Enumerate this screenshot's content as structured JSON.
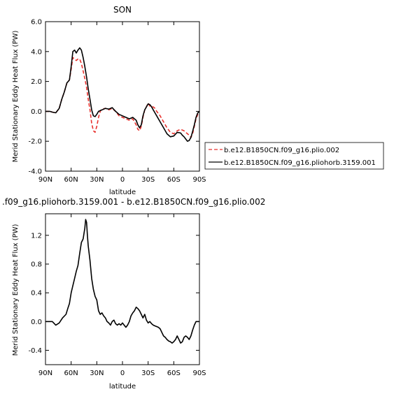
{
  "chart_data": [
    {
      "type": "line",
      "title": "SON",
      "xlabel": "latitude",
      "ylabel": "Merid Stationary Eddy Heat Flux (PW)",
      "xlim": [
        90,
        -90
      ],
      "ylim": [
        -4.0,
        6.0
      ],
      "xticks": [
        90,
        60,
        30,
        0,
        -30,
        -60,
        -90
      ],
      "xtick_labels": [
        "90N",
        "60N",
        "30N",
        "0",
        "30S",
        "60S",
        "90S"
      ],
      "yticks": [
        -4.0,
        -2.0,
        0.0,
        2.0,
        4.0,
        6.0
      ],
      "ytick_labels": [
        "-4.0",
        "-2.0",
        "0.0",
        "2.0",
        "4.0",
        "6.0"
      ],
      "grid": false,
      "legend_position": "outside-right",
      "series": [
        {
          "name": "b.e12.B1850CN.f09_g16.plio.002",
          "color": "#e8322e",
          "dash": "dashed",
          "x": [
            90,
            85,
            82,
            78,
            74,
            71,
            68,
            65,
            62,
            60,
            58,
            56,
            54,
            52,
            50,
            48,
            46,
            44,
            42,
            40,
            38,
            36,
            34,
            32,
            30,
            28,
            26,
            24,
            20,
            16,
            12,
            8,
            4,
            0,
            -4,
            -8,
            -12,
            -16,
            -18,
            -20,
            -22,
            -24,
            -26,
            -28,
            -30,
            -32,
            -34,
            -36,
            -38,
            -40,
            -44,
            -48,
            -52,
            -56,
            -60,
            -64,
            -68,
            -70,
            -72,
            -74,
            -76,
            -78,
            -80,
            -82,
            -84,
            -86,
            -88,
            -90
          ],
          "y": [
            0.0,
            0.0,
            -0.05,
            -0.1,
            0.2,
            0.8,
            1.3,
            1.9,
            2.1,
            2.8,
            3.6,
            3.5,
            3.4,
            3.5,
            3.5,
            3.2,
            2.7,
            2.2,
            1.6,
            0.8,
            0.1,
            -0.8,
            -1.3,
            -1.4,
            -1.0,
            -0.4,
            0.0,
            0.15,
            0.2,
            0.1,
            0.2,
            0.0,
            -0.3,
            -0.4,
            -0.5,
            -0.6,
            -0.5,
            -0.9,
            -1.2,
            -1.3,
            -1.0,
            -0.4,
            0.1,
            0.3,
            0.55,
            0.35,
            0.3,
            0.3,
            0.2,
            0.0,
            -0.3,
            -0.7,
            -1.1,
            -1.4,
            -1.5,
            -1.3,
            -1.2,
            -1.25,
            -1.3,
            -1.4,
            -1.5,
            -1.6,
            -1.75,
            -1.5,
            -1.0,
            -0.5,
            -0.2,
            0.0
          ]
        },
        {
          "name": "b.e12.B1850CN.f09_g16.pliohorb.3159.001",
          "color": "#000000",
          "dash": "solid",
          "x": [
            90,
            85,
            82,
            78,
            74,
            71,
            68,
            65,
            62,
            60,
            58,
            56,
            54,
            52,
            50,
            48,
            46,
            44,
            42,
            40,
            38,
            36,
            34,
            32,
            30,
            28,
            26,
            24,
            20,
            16,
            12,
            8,
            4,
            0,
            -4,
            -8,
            -12,
            -16,
            -18,
            -20,
            -22,
            -24,
            -26,
            -28,
            -30,
            -32,
            -34,
            -36,
            -38,
            -40,
            -44,
            -48,
            -52,
            -56,
            -60,
            -64,
            -68,
            -70,
            -72,
            -74,
            -76,
            -78,
            -80,
            -82,
            -84,
            -86,
            -88,
            -90
          ],
          "y": [
            0.0,
            0.0,
            -0.05,
            -0.1,
            0.2,
            0.8,
            1.3,
            1.9,
            2.1,
            3.0,
            4.0,
            4.1,
            3.9,
            4.1,
            4.25,
            4.1,
            3.6,
            3.0,
            2.3,
            1.5,
            0.8,
            0.1,
            -0.3,
            -0.35,
            -0.2,
            0.0,
            0.05,
            0.1,
            0.2,
            0.15,
            0.25,
            0.0,
            -0.2,
            -0.3,
            -0.4,
            -0.5,
            -0.4,
            -0.6,
            -0.9,
            -1.1,
            -0.9,
            -0.3,
            0.1,
            0.3,
            0.5,
            0.45,
            0.3,
            0.1,
            -0.1,
            -0.3,
            -0.7,
            -1.1,
            -1.5,
            -1.7,
            -1.65,
            -1.4,
            -1.45,
            -1.6,
            -1.7,
            -1.85,
            -2.0,
            -1.95,
            -1.75,
            -1.35,
            -0.9,
            -0.4,
            -0.1,
            0.0
          ]
        }
      ]
    },
    {
      "type": "line",
      "title": ".f09_g16.pliohorb.3159.001 - b.e12.B1850CN.f09_g16.plio.002",
      "xlabel": "latitude",
      "ylabel": "Merid Stationary Eddy Heat Flux (PW)",
      "xlim": [
        90,
        -90
      ],
      "ylim": [
        -0.6,
        1.5
      ],
      "xticks": [
        90,
        60,
        30,
        0,
        -30,
        -60,
        -90
      ],
      "xtick_labels": [
        "90N",
        "60N",
        "30N",
        "0",
        "30S",
        "60S",
        "90S"
      ],
      "yticks": [
        -0.4,
        0.0,
        0.4,
        0.8,
        1.2
      ],
      "ytick_labels": [
        "-0.4",
        "0.0",
        "0.4",
        "0.8",
        "1.2"
      ],
      "grid": false,
      "series": [
        {
          "color": "#000000",
          "dash": "solid",
          "x": [
            90,
            82,
            78,
            74,
            70,
            66,
            64,
            62,
            60,
            58,
            56,
            54,
            52,
            50,
            48,
            46,
            44,
            43,
            42,
            41,
            40,
            38,
            36,
            34,
            32,
            30,
            28,
            26,
            24,
            22,
            20,
            18,
            16,
            14,
            12,
            10,
            8,
            6,
            4,
            2,
            0,
            -2,
            -4,
            -6,
            -8,
            -10,
            -12,
            -14,
            -16,
            -18,
            -20,
            -22,
            -24,
            -26,
            -28,
            -30,
            -32,
            -34,
            -36,
            -38,
            -40,
            -42,
            -44,
            -46,
            -48,
            -50,
            -52,
            -54,
            -56,
            -58,
            -60,
            -62,
            -64,
            -66,
            -68,
            -70,
            -72,
            -74,
            -76,
            -78,
            -80,
            -82,
            -84,
            -86,
            -88,
            -90
          ],
          "y": [
            0.0,
            0.0,
            -0.05,
            -0.02,
            0.05,
            0.1,
            0.18,
            0.25,
            0.4,
            0.5,
            0.6,
            0.7,
            0.78,
            0.95,
            1.1,
            1.15,
            1.3,
            1.42,
            1.38,
            1.2,
            1.05,
            0.85,
            0.6,
            0.45,
            0.35,
            0.3,
            0.15,
            0.1,
            0.12,
            0.08,
            0.05,
            0.0,
            -0.02,
            -0.05,
            0.0,
            0.02,
            -0.03,
            -0.05,
            -0.03,
            -0.05,
            -0.02,
            -0.05,
            -0.08,
            -0.05,
            0.0,
            0.08,
            0.12,
            0.15,
            0.2,
            0.18,
            0.15,
            0.1,
            0.05,
            0.1,
            0.02,
            -0.02,
            0.0,
            -0.03,
            -0.05,
            -0.06,
            -0.07,
            -0.08,
            -0.1,
            -0.15,
            -0.2,
            -0.22,
            -0.25,
            -0.27,
            -0.28,
            -0.3,
            -0.28,
            -0.25,
            -0.2,
            -0.25,
            -0.3,
            -0.28,
            -0.22,
            -0.2,
            -0.22,
            -0.25,
            -0.2,
            -0.12,
            -0.05,
            0.0,
            0.0,
            0.0
          ]
        }
      ]
    }
  ]
}
